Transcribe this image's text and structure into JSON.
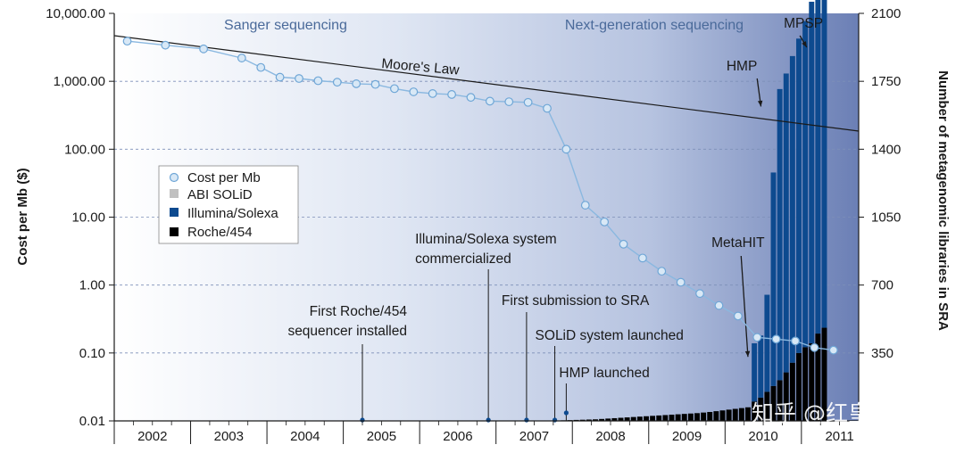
{
  "chart_data": {
    "type": "bar+line",
    "title": "",
    "x_axis": {
      "label": "",
      "years": [
        "2002",
        "2003",
        "2004",
        "2005",
        "2006",
        "2007",
        "2008",
        "2009",
        "2010",
        "2011"
      ],
      "range": [
        2001.75,
        2011.5
      ]
    },
    "y_left": {
      "label": "Cost per Mb ($)",
      "scale": "log",
      "range": [
        0.01,
        10000
      ],
      "ticks": [
        "10,000.00",
        "1,000.00",
        "100.00",
        "10.00",
        "1.00",
        "0.10",
        "0.01"
      ]
    },
    "y_right": {
      "label": "Number of metagenomic libraries in SRA",
      "scale": "linear",
      "range": [
        0,
        2100
      ],
      "ticks": [
        "2100",
        "1750",
        "1400",
        "1050",
        "700",
        "350"
      ]
    },
    "eras": [
      "Sanger sequencing",
      "Next-generation sequencing"
    ],
    "moores_law": {
      "label": "Moore's Law",
      "from": {
        "x": 2001.75,
        "y": 4700
      },
      "to": {
        "x": 2011.5,
        "y": 185
      }
    },
    "legend": {
      "position": "left-middle",
      "entries": [
        "Cost per Mb",
        "ABI SOLiD",
        "Illumina/Solexa",
        "Roche/454"
      ]
    },
    "colors": {
      "cost_line": "#8ab8e0",
      "cost_marker": "#d8e8f6",
      "abi_solid": "#c0c0c0",
      "illumina": "#0d4a8f",
      "roche": "#000000",
      "moores_law": "#1a1a1a",
      "sanger_bg": "#ffffff",
      "ngs_bg": "#6b7fb5"
    },
    "series": [
      {
        "name": "Cost per Mb",
        "axis": "left",
        "type": "line",
        "x": [
          2001.92,
          2002.42,
          2002.92,
          2003.42,
          2003.67,
          2003.92,
          2004.17,
          2004.42,
          2004.67,
          2004.92,
          2005.17,
          2005.42,
          2005.67,
          2005.92,
          2006.17,
          2006.42,
          2006.67,
          2006.92,
          2007.17,
          2007.42,
          2007.67,
          2007.92,
          2008.17,
          2008.42,
          2008.67,
          2008.92,
          2009.17,
          2009.42,
          2009.67,
          2009.92,
          2010.17,
          2010.42,
          2010.67,
          2010.92,
          2011.17
        ],
        "y": [
          3900,
          3400,
          3000,
          2200,
          1600,
          1150,
          1100,
          1020,
          970,
          920,
          900,
          780,
          700,
          660,
          640,
          580,
          510,
          500,
          490,
          400,
          100,
          15,
          8.5,
          4,
          2.5,
          1.6,
          1.1,
          0.75,
          0.5,
          0.35,
          0.17,
          0.16,
          0.15,
          0.12,
          0.11
        ]
      },
      {
        "name": "Roche/454",
        "axis": "right",
        "type": "stacked-bar",
        "x_start": 2007.6,
        "bar_width": 0.0833,
        "values": [
          3,
          4,
          5,
          6,
          7,
          8,
          10,
          12,
          14,
          16,
          18,
          20,
          22,
          24,
          26,
          28,
          30,
          32,
          34,
          36,
          38,
          40,
          43,
          46,
          50,
          54,
          58,
          62,
          66,
          70,
          100,
          120,
          150,
          180,
          210,
          250,
          300,
          350,
          380,
          400,
          450,
          480
        ]
      },
      {
        "name": "Illumina/Solexa",
        "axis": "right",
        "type": "stacked-bar",
        "x_start": 2007.6,
        "bar_width": 0.0833,
        "values": [
          0,
          0,
          0,
          0,
          0,
          0,
          0,
          0,
          0,
          0,
          0,
          0,
          0,
          0,
          0,
          0,
          0,
          0,
          0,
          0,
          0,
          0,
          0,
          0,
          0,
          0,
          0,
          0,
          0,
          0,
          300,
          320,
          500,
          1100,
          1500,
          1540,
          1580,
          1620,
          1680,
          1760,
          1840,
          1890
        ]
      },
      {
        "name": "ABI SOLiD",
        "axis": "right",
        "type": "stacked-bar",
        "x_start": 2007.6,
        "bar_width": 0.0833,
        "values": [
          0,
          0,
          0,
          0,
          0,
          0,
          0,
          0,
          0,
          0,
          0,
          0,
          0,
          0,
          0,
          0,
          0,
          0,
          0,
          0,
          0,
          0,
          0,
          0,
          0,
          0,
          0,
          0,
          0,
          0,
          0,
          0,
          0,
          0,
          0,
          0,
          0,
          0,
          0,
          0,
          0,
          8
        ]
      }
    ],
    "annotations": [
      {
        "id": "roche-installed",
        "lines": [
          "First Roche/454",
          "sequencer installed"
        ],
        "x": 2005.0,
        "align": "end"
      },
      {
        "id": "illumina-comm",
        "lines": [
          "Illumina/Solexa system",
          "commercialized"
        ],
        "x": 2006.65,
        "align": "start"
      },
      {
        "id": "sra-first",
        "lines": [
          "First submission to SRA"
        ],
        "x": 2007.15,
        "align": "start"
      },
      {
        "id": "solid-launched",
        "lines": [
          "SOLiD system launched"
        ],
        "x": 2007.52,
        "align": "start"
      },
      {
        "id": "hmp-launched",
        "lines": [
          "HMP launched"
        ],
        "x": 2007.67,
        "align": "start"
      },
      {
        "id": "metahit",
        "lines": [
          "MetaHIT"
        ],
        "x": 2009.92,
        "align": "middle"
      },
      {
        "id": "hmp",
        "lines": [
          "HMP"
        ],
        "x": 2010.25,
        "align": "middle"
      },
      {
        "id": "mpsp",
        "lines": [
          "MPSP"
        ],
        "x": 2010.8,
        "align": "middle"
      }
    ],
    "watermark": "知乎 @红皇后学术"
  }
}
